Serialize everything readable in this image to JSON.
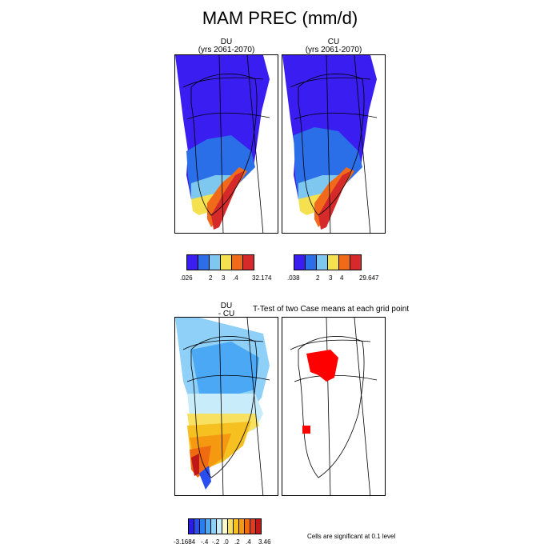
{
  "title": "MAM PREC (mm/d)",
  "panels": {
    "du": {
      "title_line1": "DU",
      "title_line2": "(yrs 2061-2070)"
    },
    "cu": {
      "title_line1": "CU",
      "title_line2": "(yrs 2061-2070)"
    },
    "diff": {
      "title_line1": "DU",
      "title_line2": "- CU"
    },
    "ttest": {
      "title": "T-Test of two Case means at each grid point"
    }
  },
  "colorbars": {
    "du": {
      "colors": [
        "#3a1df0",
        "#2a6fe8",
        "#7ec8f0",
        "#f5e050",
        "#f06a1a",
        "#d62a2a"
      ],
      "labels": [
        ".026",
        "2",
        "3",
        ".4",
        "32.174"
      ]
    },
    "cu": {
      "colors": [
        "#3a1df0",
        "#2a6fe8",
        "#7ec8f0",
        "#f5e050",
        "#f06a1a",
        "#d62a2a"
      ],
      "labels": [
        ".038",
        "2",
        "3",
        "4",
        "29.647"
      ]
    },
    "diff": {
      "colors": [
        "#2a1de0",
        "#2a4df0",
        "#2a7ff0",
        "#4aa8f5",
        "#8fd0f8",
        "#c8ecfa",
        "#fafad0",
        "#f8e060",
        "#f5c020",
        "#f59a10",
        "#f06a10",
        "#e03a20",
        "#c01818"
      ],
      "labels": [
        "-3.1684",
        "-.4",
        "-.2",
        ".0",
        ".2",
        ".4",
        "3.46"
      ]
    }
  },
  "significance_note": "Cells are significant at 0.1 level",
  "colors": {
    "ice_blue": "#3a1df0",
    "mid_blue": "#2a6fe8",
    "light_blue": "#7ec8f0",
    "yellow": "#f5e050",
    "orange": "#f06a1a",
    "red": "#d62a2a",
    "sig_red": "#ff0000"
  }
}
